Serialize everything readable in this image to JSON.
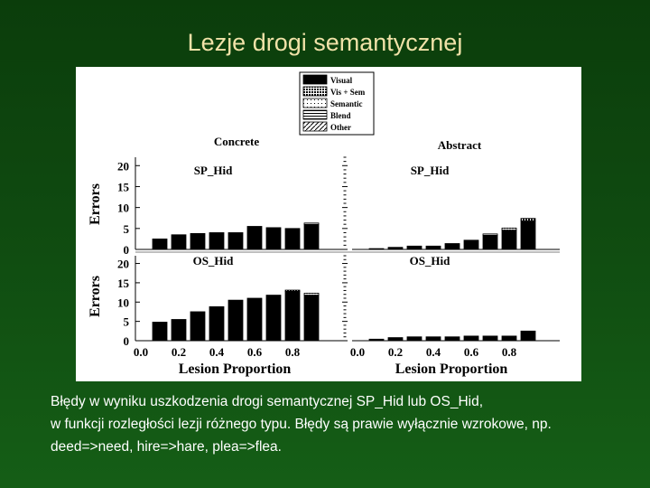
{
  "slide": {
    "title": "Lezje drogi semantycznej",
    "caption": [
      "Błędy w wyniku uszkodzenia drogi semantycznej SP_Hid lub OS_Hid,",
      "w funkcji rozległości lezji różnego typu. Błędy są prawie wyłącznie wzrokowe, np.",
      "deed=>need, hire=>hare, plea=>flea."
    ]
  },
  "chart_data": {
    "type": "bar",
    "stacked": true,
    "legend": {
      "placement": "top-center",
      "entries": [
        {
          "name": "Visual",
          "fill": "solid-black"
        },
        {
          "name": "Vis + Sem",
          "fill": "dense-dots"
        },
        {
          "name": "Semantic",
          "fill": "sparse-dots"
        },
        {
          "name": "Blend",
          "fill": "horizontal-lines"
        },
        {
          "name": "Other",
          "fill": "diagonal-hatch"
        }
      ]
    },
    "column_titles": [
      "Concrete",
      "Abstract"
    ],
    "ylabel": "Errors",
    "xlabel": "Lesion Proportion",
    "ylim": [
      0,
      22
    ],
    "yticks": [
      0,
      5,
      10,
      15,
      20
    ],
    "xticks": [
      "0.0",
      "0.2",
      "0.4",
      "0.6",
      "0.8"
    ],
    "categories": [
      0.1,
      0.2,
      0.3,
      0.4,
      0.5,
      0.6,
      0.7,
      0.8,
      0.9
    ],
    "panels": [
      {
        "row_label": "SP_Hid",
        "column": "Concrete",
        "series": [
          {
            "name": "Visual",
            "values": [
              2.5,
              3.5,
              3.8,
              4.0,
              4.0,
              5.5,
              5.2,
              5.0,
              6.0
            ]
          },
          {
            "name": "Vis + Sem",
            "values": [
              0,
              0,
              0,
              0,
              0,
              0,
              0,
              0,
              0.3
            ]
          }
        ]
      },
      {
        "row_label": "SP_Hid",
        "column": "Abstract",
        "series": [
          {
            "name": "Visual",
            "values": [
              0.2,
              0.5,
              0.8,
              0.8,
              1.4,
              2.2,
              3.4,
              4.6,
              6.8
            ]
          },
          {
            "name": "Vis + Sem",
            "values": [
              0,
              0,
              0,
              0,
              0,
              0,
              0.3,
              0.5,
              0.6
            ]
          }
        ]
      },
      {
        "row_label": "OS_Hid",
        "column": "Concrete",
        "series": [
          {
            "name": "Visual",
            "values": [
              4.8,
              5.5,
              7.5,
              8.8,
              10.5,
              11.0,
              11.8,
              12.8,
              11.8
            ]
          },
          {
            "name": "Vis + Sem",
            "values": [
              0,
              0,
              0,
              0,
              0,
              0,
              0,
              0.3,
              0.5
            ]
          }
        ]
      },
      {
        "row_label": "OS_Hid",
        "column": "Abstract",
        "series": [
          {
            "name": "Visual",
            "values": [
              0.4,
              0.8,
              1.0,
              1.0,
              1.0,
              1.2,
              1.2,
              1.2,
              2.5
            ]
          },
          {
            "name": "Vis + Sem",
            "values": [
              0,
              0,
              0,
              0,
              0,
              0,
              0,
              0,
              0
            ]
          }
        ]
      }
    ]
  }
}
